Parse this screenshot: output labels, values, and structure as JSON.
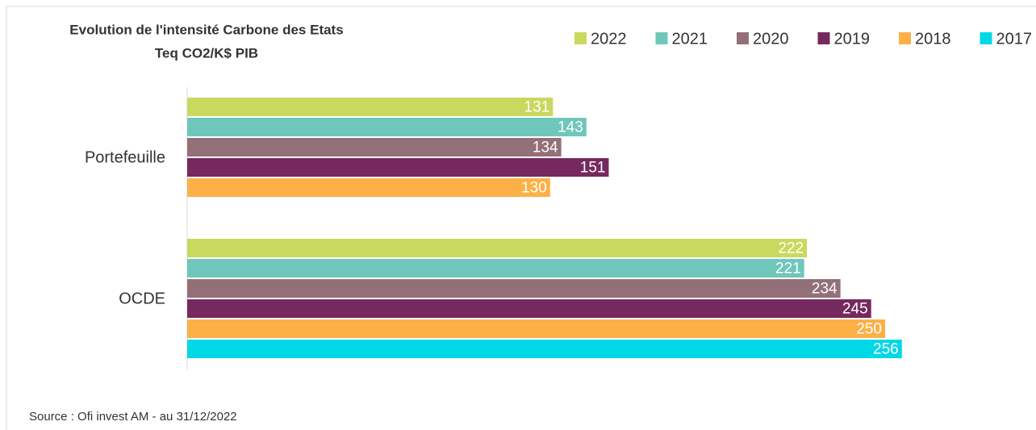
{
  "chart_data": {
    "type": "bar",
    "orientation": "horizontal",
    "title": "Evolution de l'intensité Carbone des Etats",
    "subtitle": "Teq CO2/K$ PIB",
    "source": "Source : Ofi invest AM - au 31/12/2022",
    "categories": [
      "Portefeuille",
      "OCDE"
    ],
    "series": [
      {
        "name": "2022",
        "color": "#c9d85e",
        "values": [
          131,
          222
        ]
      },
      {
        "name": "2021",
        "color": "#6fc7bb",
        "values": [
          143,
          221
        ]
      },
      {
        "name": "2020",
        "color": "#937077",
        "values": [
          134,
          234
        ]
      },
      {
        "name": "2019",
        "color": "#76295e",
        "values": [
          151,
          245
        ]
      },
      {
        "name": "2018",
        "color": "#fdb045",
        "values": [
          130,
          250
        ]
      },
      {
        "name": "2017",
        "color": "#00d8e6",
        "values": [
          null,
          256
        ]
      }
    ],
    "legend": "top-right"
  }
}
